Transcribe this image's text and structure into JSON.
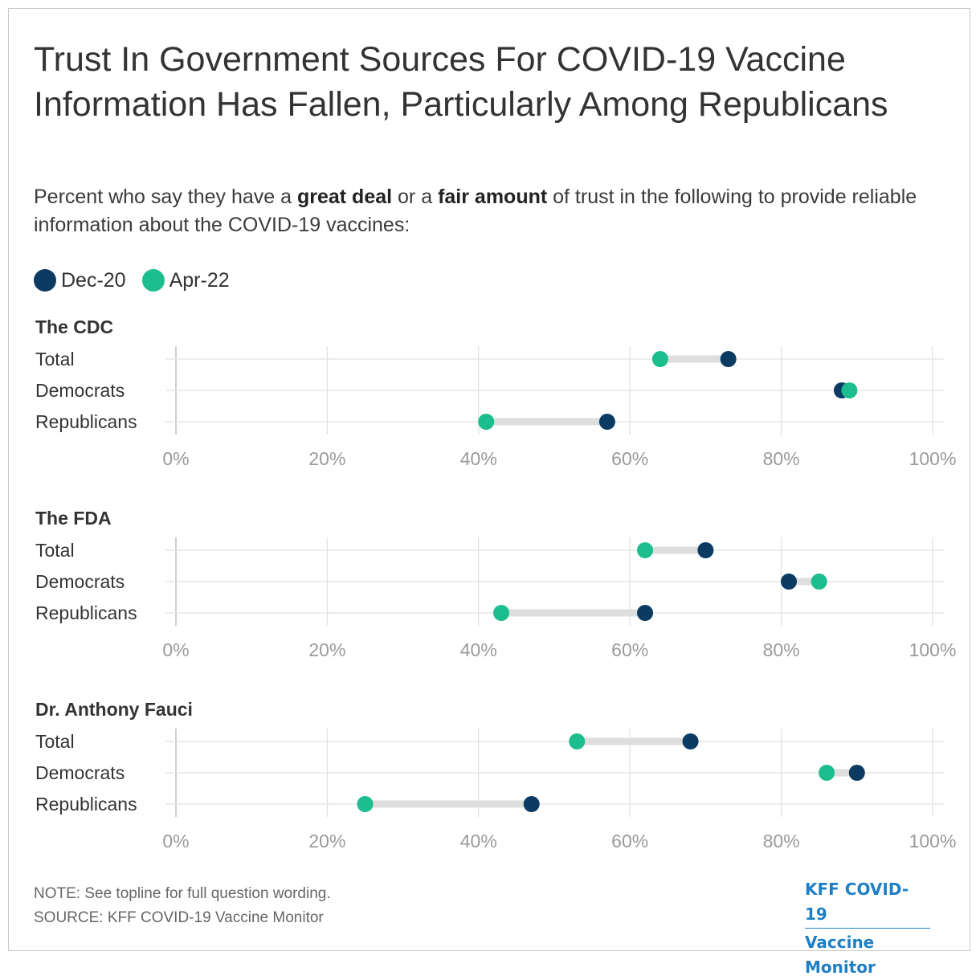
{
  "title": "Trust In Government Sources For COVID-19 Vaccine Information Has Fallen, Particularly Among Republicans",
  "subtitle": {
    "part1": "Percent who say they have a ",
    "bold1": "great deal",
    "part2": " or a ",
    "bold2": "fair amount",
    "part3": " of trust in the following to provide reliable information about the COVID-19 vaccines:"
  },
  "legend": [
    {
      "label": "Dec-20",
      "color": "#0b3a63"
    },
    {
      "label": "Apr-22",
      "color": "#1cbe8e"
    }
  ],
  "note": "NOTE: See topline for full question wording.",
  "source": "SOURCE: KFF COVID-19 Vaccine Monitor",
  "logo": {
    "line1": "KFF COVID-19",
    "line2": "Vaccine Monitor"
  },
  "colors": {
    "dec20": "#0b3a63",
    "apr22": "#1cbe8e",
    "connector": "#dedede",
    "grid": "#e5e5e5",
    "tick": "#9a9a9a"
  },
  "chart_data": {
    "type": "dumbbell",
    "x_ticks": [
      "0%",
      "20%",
      "40%",
      "60%",
      "80%",
      "100%"
    ],
    "xlim": [
      0,
      100
    ],
    "panels": [
      {
        "title": "The CDC",
        "rows": [
          {
            "label": "Total",
            "dec20": 73,
            "apr22": 64
          },
          {
            "label": "Democrats",
            "dec20": 88,
            "apr22": 89
          },
          {
            "label": "Republicans",
            "dec20": 57,
            "apr22": 41
          }
        ]
      },
      {
        "title": "The FDA",
        "rows": [
          {
            "label": "Total",
            "dec20": 70,
            "apr22": 62
          },
          {
            "label": "Democrats",
            "dec20": 81,
            "apr22": 85
          },
          {
            "label": "Republicans",
            "dec20": 62,
            "apr22": 43
          }
        ]
      },
      {
        "title": "Dr. Anthony Fauci",
        "rows": [
          {
            "label": "Total",
            "dec20": 68,
            "apr22": 53
          },
          {
            "label": "Democrats",
            "dec20": 90,
            "apr22": 86
          },
          {
            "label": "Republicans",
            "dec20": 47,
            "apr22": 25
          }
        ]
      }
    ]
  }
}
